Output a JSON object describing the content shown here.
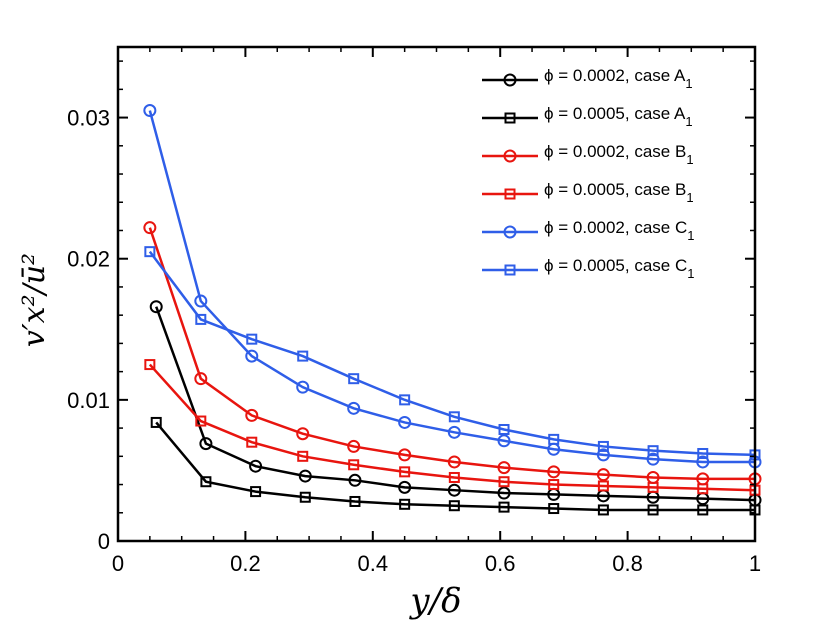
{
  "chart_data": {
    "type": "line",
    "xlabel": "y/δ",
    "ylabel": "v′x²/ū²",
    "xlim": [
      0,
      1
    ],
    "ylim": [
      0,
      0.035
    ],
    "x_ticks": [
      "0",
      "0.2",
      "0.4",
      "0.6",
      "0.8",
      "1"
    ],
    "y_ticks": [
      "0",
      "0.01",
      "0.02",
      "0.03"
    ],
    "legend_position": "top-right",
    "series": [
      {
        "name": "ϕ = 0.0002, case A",
        "subscript": "1",
        "color": "#000000",
        "marker": "circle",
        "x": [
          0.06,
          0.138,
          0.216,
          0.294,
          0.372,
          0.45,
          0.528,
          0.606,
          0.684,
          0.762,
          0.84,
          0.918,
          1.0
        ],
        "y": [
          0.0166,
          0.0069,
          0.0053,
          0.0046,
          0.0043,
          0.0038,
          0.0036,
          0.0034,
          0.0033,
          0.0032,
          0.0031,
          0.003,
          0.0029
        ]
      },
      {
        "name": "ϕ = 0.0005, case A",
        "subscript": "1",
        "color": "#000000",
        "marker": "square",
        "x": [
          0.06,
          0.138,
          0.216,
          0.294,
          0.372,
          0.45,
          0.528,
          0.606,
          0.684,
          0.762,
          0.84,
          0.918,
          1.0
        ],
        "y": [
          0.0084,
          0.0042,
          0.0035,
          0.0031,
          0.0028,
          0.0026,
          0.0025,
          0.0024,
          0.0023,
          0.0022,
          0.0022,
          0.0022,
          0.0022
        ]
      },
      {
        "name": "ϕ = 0.0002, case B",
        "subscript": "1",
        "color": "#e8150f",
        "marker": "circle",
        "x": [
          0.05,
          0.13,
          0.21,
          0.29,
          0.37,
          0.45,
          0.528,
          0.606,
          0.684,
          0.762,
          0.84,
          0.918,
          1.0
        ],
        "y": [
          0.0222,
          0.0115,
          0.0089,
          0.0076,
          0.0067,
          0.0061,
          0.0056,
          0.0052,
          0.0049,
          0.0047,
          0.0045,
          0.0044,
          0.0044
        ]
      },
      {
        "name": "ϕ = 0.0005, case B",
        "subscript": "1",
        "color": "#e8150f",
        "marker": "square",
        "x": [
          0.05,
          0.13,
          0.21,
          0.29,
          0.37,
          0.45,
          0.528,
          0.606,
          0.684,
          0.762,
          0.84,
          0.918,
          1.0
        ],
        "y": [
          0.0125,
          0.0085,
          0.007,
          0.006,
          0.0054,
          0.0049,
          0.0045,
          0.0042,
          0.004,
          0.0039,
          0.0038,
          0.0037,
          0.0036
        ]
      },
      {
        "name": "ϕ = 0.0002, case C",
        "subscript": "1",
        "color": "#2f5ee8",
        "marker": "circle",
        "x": [
          0.05,
          0.13,
          0.21,
          0.29,
          0.37,
          0.45,
          0.528,
          0.606,
          0.684,
          0.762,
          0.84,
          0.918,
          1.0
        ],
        "y": [
          0.0305,
          0.017,
          0.0131,
          0.0109,
          0.0094,
          0.0084,
          0.0077,
          0.0071,
          0.0065,
          0.0061,
          0.0058,
          0.0056,
          0.0056
        ]
      },
      {
        "name": "ϕ = 0.0005, case C",
        "subscript": "1",
        "color": "#2f5ee8",
        "marker": "square",
        "x": [
          0.05,
          0.13,
          0.21,
          0.29,
          0.37,
          0.45,
          0.528,
          0.606,
          0.684,
          0.762,
          0.84,
          0.918,
          1.0
        ],
        "y": [
          0.0205,
          0.0157,
          0.0143,
          0.0131,
          0.0115,
          0.01,
          0.0088,
          0.0079,
          0.0072,
          0.0067,
          0.0064,
          0.0062,
          0.0061
        ]
      }
    ]
  }
}
